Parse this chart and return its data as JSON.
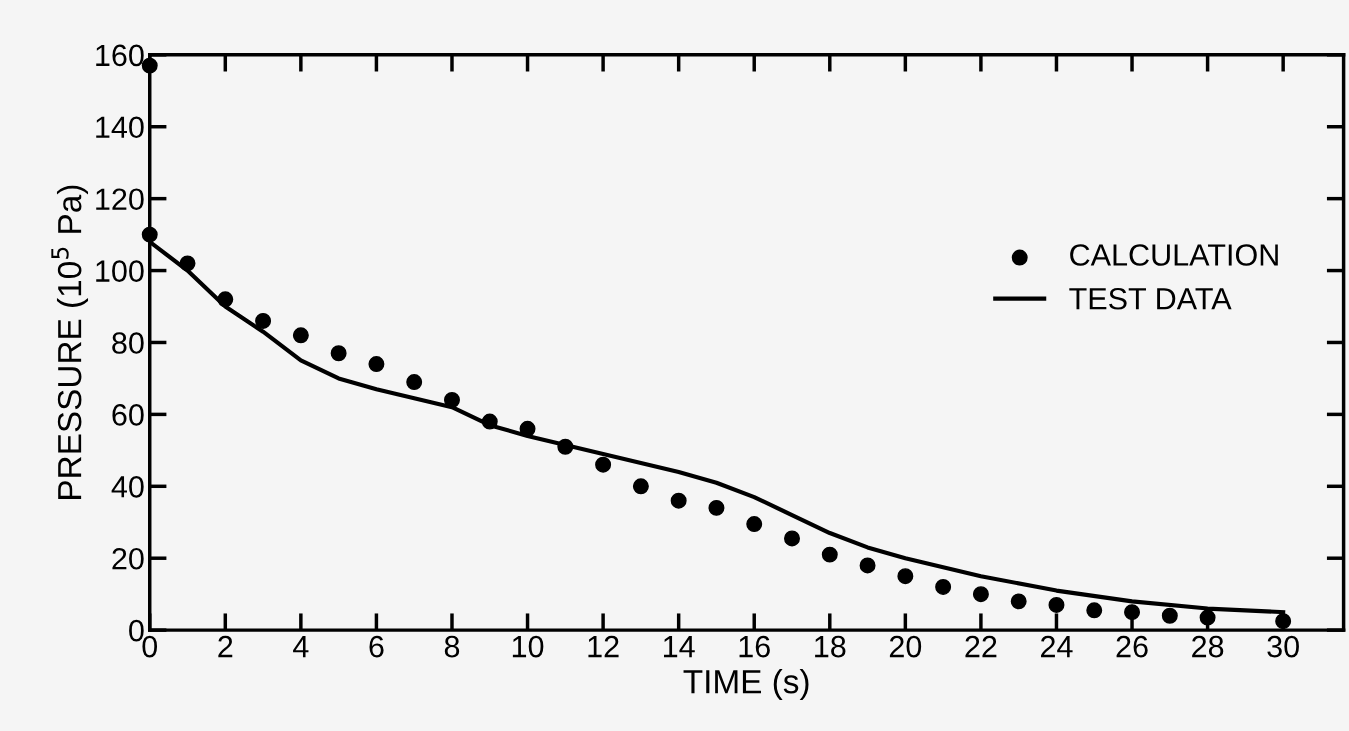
{
  "chart_data": {
    "type": "line",
    "xlabel": "TIME (s)",
    "ylabel": "PRESSURE (10$^{5}$ Pa)",
    "xlim": [
      0,
      31.6
    ],
    "xticks": [
      0,
      2,
      4,
      6,
      8,
      10,
      12,
      14,
      16,
      18,
      20,
      22,
      24,
      26,
      28,
      30
    ],
    "ylim": [
      0,
      160
    ],
    "yticks": [
      0,
      20,
      40,
      60,
      80,
      100,
      120,
      140,
      160
    ],
    "grid": false,
    "legend": "top right",
    "series": [
      {
        "name": "CALCULATION",
        "type": "scatter",
        "color": "#000000",
        "marker": "circle",
        "x": [
          0,
          0,
          1,
          2,
          3,
          4,
          5,
          6,
          7,
          8,
          9,
          10,
          11,
          12,
          13,
          14,
          15,
          16,
          17,
          18,
          19,
          20,
          21,
          22,
          23,
          24,
          25,
          26,
          27,
          28,
          30
        ],
        "values": [
          157,
          110,
          102,
          92,
          86,
          82,
          77,
          74,
          69,
          64,
          58,
          56,
          51,
          46,
          40,
          36,
          34,
          29.5,
          25.5,
          21,
          18,
          15,
          12,
          10,
          8,
          7,
          5.5,
          5,
          4,
          3.5,
          2.5
        ]
      },
      {
        "name": "TEST DATA",
        "color": "#000000",
        "line_style": "solid",
        "x": [
          0,
          1,
          2,
          3,
          4,
          5,
          6,
          7,
          8,
          9,
          10,
          11,
          12,
          13,
          14,
          15,
          16,
          17,
          18,
          19,
          20,
          22,
          24,
          26,
          28,
          30
        ],
        "values": [
          108,
          100,
          90,
          83,
          75,
          70,
          67,
          64.5,
          62,
          57,
          54,
          51.5,
          49,
          46.5,
          44,
          41,
          37,
          32,
          27,
          23,
          20,
          15,
          11,
          8,
          6,
          5
        ]
      }
    ]
  }
}
